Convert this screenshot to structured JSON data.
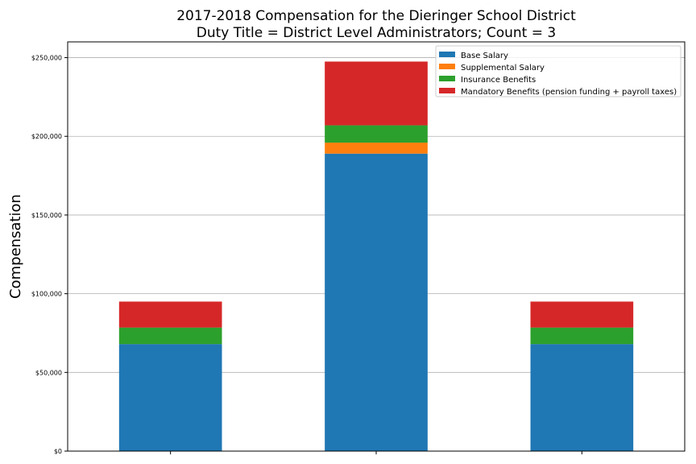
{
  "chart_data": {
    "type": "bar",
    "stacked": true,
    "title_line1": "2017-2018 Compensation for the Dieringer School District",
    "title_line2": "Duty Title = District Level Administrators; Count = 3",
    "xlabel": "",
    "ylabel": "Compensation",
    "ylim": [
      0,
      260000
    ],
    "yticks": [
      0,
      50000,
      100000,
      150000,
      200000,
      250000
    ],
    "ytick_labels": [
      "$0",
      "$50,000",
      "$100,000",
      "$150,000",
      "$200,000",
      "$250,000"
    ],
    "categories": [
      "",
      "",
      ""
    ],
    "grid": true,
    "legend_position": "top-right",
    "series": [
      {
        "name": "Base Salary",
        "color": "#1f77b4",
        "values": [
          68000,
          189000,
          68000
        ]
      },
      {
        "name": "Supplemental Salary",
        "color": "#ff7f0e",
        "values": [
          0,
          7000,
          0
        ]
      },
      {
        "name": "Insurance Benefits",
        "color": "#2ca02c",
        "values": [
          10500,
          11000,
          10500
        ]
      },
      {
        "name": "Mandatory Benefits (pension funding + payroll taxes)",
        "color": "#d62728",
        "values": [
          16500,
          40500,
          16500
        ]
      }
    ]
  }
}
